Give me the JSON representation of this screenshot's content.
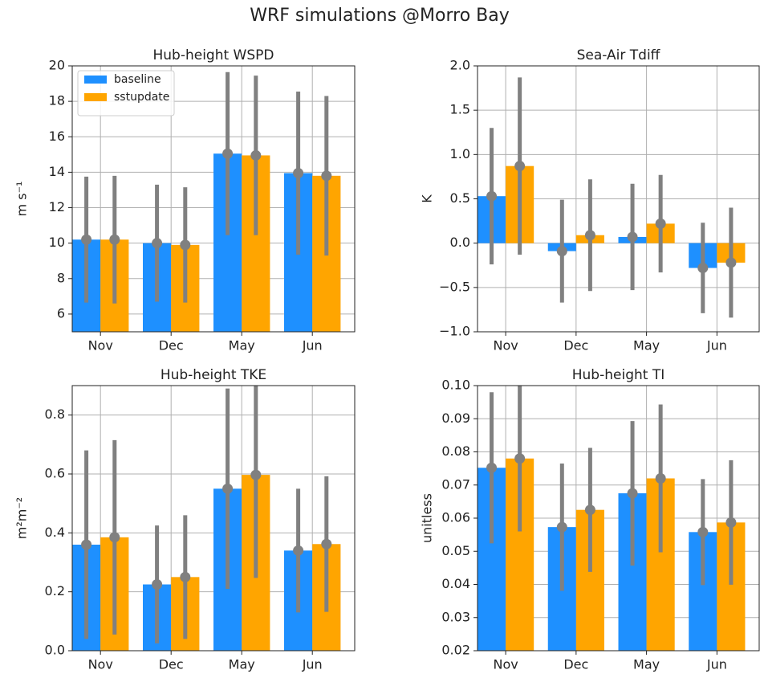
{
  "title": "WRF simulations @Morro Bay",
  "chart_data": [
    {
      "type": "bar",
      "title": "Hub-height WSPD",
      "ylabel": "m s⁻¹",
      "categories": [
        "Nov",
        "Dec",
        "May",
        "Jun"
      ],
      "series": [
        {
          "name": "baseline",
          "color": "#1e90ff",
          "values": [
            10.2,
            10.0,
            15.05,
            13.95
          ],
          "errors": [
            3.55,
            3.3,
            4.6,
            4.6
          ]
        },
        {
          "name": "sstupdate",
          "color": "#ffa500",
          "values": [
            10.2,
            9.9,
            14.95,
            13.8
          ],
          "errors": [
            3.6,
            3.25,
            4.5,
            4.5
          ]
        }
      ],
      "ylim": [
        5,
        20
      ],
      "yticks": [
        6,
        8,
        10,
        12,
        14,
        16,
        18,
        20
      ],
      "grid": true,
      "legend": "upper left",
      "error_color": "#808080"
    },
    {
      "type": "bar",
      "title": "Sea-Air Tdiff",
      "ylabel": "K",
      "categories": [
        "Nov",
        "Dec",
        "May",
        "Jun"
      ],
      "series": [
        {
          "color": "#1e90ff",
          "values": [
            0.53,
            -0.09,
            0.07,
            -0.28
          ],
          "errors": [
            0.77,
            0.58,
            0.6,
            0.51
          ]
        },
        {
          "color": "#ffa500",
          "values": [
            0.87,
            0.09,
            0.22,
            -0.22
          ],
          "errors": [
            1.0,
            0.63,
            0.55,
            0.62
          ]
        }
      ],
      "ylim": [
        -1,
        2
      ],
      "yticks": [
        {
          "value": -1,
          "label": "−1.0"
        },
        {
          "value": -0.5,
          "label": "−0.5"
        },
        {
          "value": 0,
          "label": "0.0"
        },
        0.5,
        {
          "value": 1,
          "label": "1.0"
        },
        1.5,
        {
          "value": 2,
          "label": "2.0"
        }
      ],
      "grid": true,
      "error_color": "#808080"
    },
    {
      "type": "bar",
      "title": "Hub-height TKE",
      "ylabel": "m²m⁻²",
      "categories": [
        "Nov",
        "Dec",
        "May",
        "Jun"
      ],
      "series": [
        {
          "color": "#1e90ff",
          "values": [
            0.36,
            0.225,
            0.55,
            0.34
          ],
          "errors": [
            0.32,
            0.2,
            0.34,
            0.21
          ]
        },
        {
          "color": "#ffa500",
          "values": [
            0.385,
            0.25,
            0.597,
            0.362
          ],
          "errors": [
            0.33,
            0.21,
            0.35,
            0.23
          ]
        }
      ],
      "ylim": [
        0,
        0.9
      ],
      "yticks": [
        {
          "value": 0,
          "label": "0.0"
        },
        0.2,
        0.4,
        0.6,
        0.8
      ],
      "grid": true,
      "error_color": "#808080"
    },
    {
      "type": "bar",
      "title": "Hub-height TI",
      "ylabel": "unitless",
      "categories": [
        "Nov",
        "Dec",
        "May",
        "Jun"
      ],
      "series": [
        {
          "color": "#1e90ff",
          "values": [
            0.0752,
            0.0573,
            0.0675,
            0.0558
          ],
          "errors": [
            0.0228,
            0.0192,
            0.0218,
            0.016
          ]
        },
        {
          "color": "#ffa500",
          "values": [
            0.078,
            0.0625,
            0.072,
            0.0587
          ],
          "errors": [
            0.022,
            0.0187,
            0.0223,
            0.0188
          ]
        }
      ],
      "ylim": [
        0.02,
        0.1
      ],
      "yticks": [
        0.02,
        0.03,
        0.04,
        0.05,
        0.06,
        0.07,
        0.08,
        0.09,
        {
          "value": 0.1,
          "label": "0.10"
        }
      ],
      "grid": true,
      "error_color": "#808080"
    }
  ]
}
